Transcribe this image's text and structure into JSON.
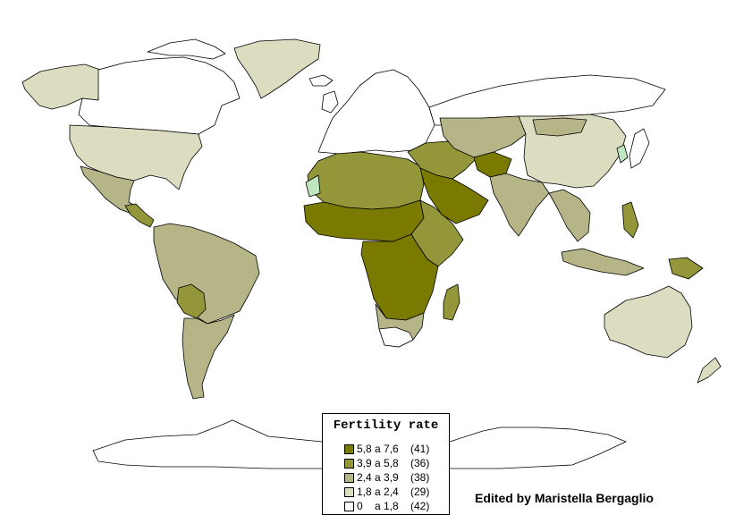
{
  "map": {
    "colors": {
      "c5": "#7a7a00",
      "c4": "#939639",
      "c3": "#b5b588",
      "c2": "#dcdcc0",
      "c1": "#ffffff",
      "special": "#bfe6bf"
    }
  },
  "legend": {
    "title": "Fertility rate",
    "items": [
      {
        "range": "5,8 a 7,6",
        "count": "(41)",
        "color": "#7a7a00"
      },
      {
        "range": "3,9 a 5,8",
        "count": "(36)",
        "color": "#939639"
      },
      {
        "range": "2,4 a 3,9",
        "count": "(38)",
        "color": "#b5b588"
      },
      {
        "range": "1,8 a 2,4",
        "count": "(29)",
        "color": "#dcdcc0"
      },
      {
        "range": "0    a 1,8",
        "count": "(42)",
        "color": "#ffffff"
      }
    ]
  },
  "credit": "Edited by Maristella Bergaglio"
}
